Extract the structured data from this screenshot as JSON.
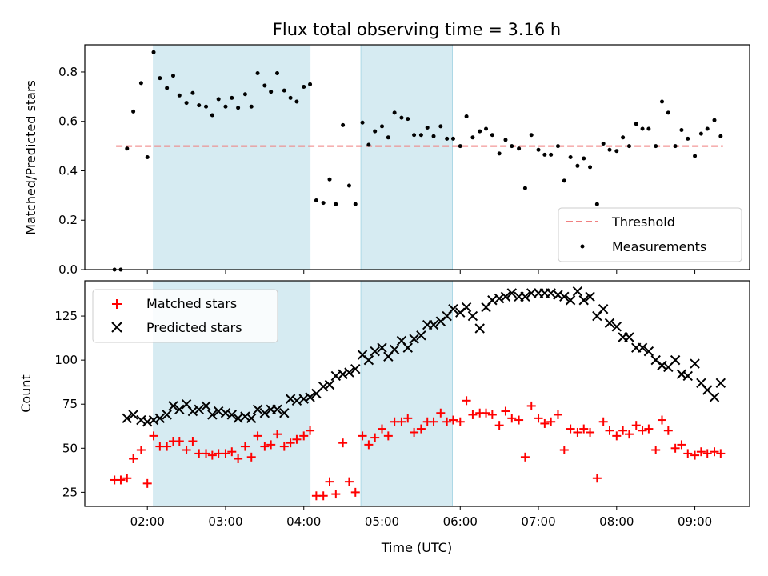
{
  "chart_data": [
    {
      "type": "scatter",
      "title": "Flux total observing time = 3.16 h",
      "xlabel": "",
      "ylabel": "Matched/Predicted stars",
      "xlim": [
        1.2,
        9.7
      ],
      "ylim": [
        0.0,
        0.91
      ],
      "yticks": [
        0.0,
        0.2,
        0.4,
        0.6,
        0.8
      ],
      "grid": false,
      "legend_position": "bottom-right",
      "shaded_regions": [
        [
          2.08,
          4.08
        ],
        [
          4.73,
          5.9
        ]
      ],
      "threshold": {
        "name": "Threshold",
        "y": 0.5,
        "x_range": [
          1.6,
          9.36
        ],
        "color": "#f08080",
        "style": "dashed"
      },
      "series": [
        {
          "name": "Measurements",
          "marker": "dot",
          "color": "#000000",
          "x": [
            1.58,
            1.66,
            1.74,
            1.82,
            1.92,
            2.0,
            2.08,
            2.16,
            2.25,
            2.33,
            2.41,
            2.5,
            2.58,
            2.66,
            2.75,
            2.83,
            2.91,
            3.0,
            3.08,
            3.16,
            3.25,
            3.33,
            3.41,
            3.5,
            3.58,
            3.66,
            3.75,
            3.83,
            3.91,
            4.0,
            4.08,
            4.16,
            4.25,
            4.33,
            4.41,
            4.5,
            4.58,
            4.66,
            4.75,
            4.83,
            4.91,
            5.0,
            5.08,
            5.16,
            5.25,
            5.33,
            5.41,
            5.5,
            5.58,
            5.66,
            5.75,
            5.83,
            5.91,
            6.0,
            6.08,
            6.16,
            6.25,
            6.33,
            6.41,
            6.5,
            6.58,
            6.66,
            6.75,
            6.83,
            6.91,
            7.0,
            7.08,
            7.16,
            7.25,
            7.33,
            7.41,
            7.5,
            7.58,
            7.66,
            7.75,
            7.83,
            7.91,
            8.0,
            8.08,
            8.16,
            8.25,
            8.33,
            8.41,
            8.5,
            8.58,
            8.66,
            8.75,
            8.83,
            8.91,
            9.0,
            9.08,
            9.16,
            9.25,
            9.33
          ],
          "y": [
            0.0,
            0.0,
            0.49,
            0.64,
            0.755,
            0.455,
            0.88,
            0.775,
            0.735,
            0.785,
            0.705,
            0.675,
            0.715,
            0.665,
            0.66,
            0.625,
            0.69,
            0.66,
            0.695,
            0.655,
            0.71,
            0.66,
            0.795,
            0.745,
            0.72,
            0.795,
            0.725,
            0.695,
            0.68,
            0.74,
            0.75,
            0.28,
            0.27,
            0.365,
            0.265,
            0.585,
            0.34,
            0.265,
            0.595,
            0.505,
            0.56,
            0.58,
            0.535,
            0.635,
            0.615,
            0.61,
            0.545,
            0.545,
            0.575,
            0.54,
            0.58,
            0.53,
            0.53,
            0.5,
            0.62,
            0.535,
            0.56,
            0.57,
            0.545,
            0.47,
            0.525,
            0.5,
            0.49,
            0.33,
            0.545,
            0.485,
            0.465,
            0.465,
            0.5,
            0.36,
            0.455,
            0.42,
            0.45,
            0.415,
            0.265,
            0.51,
            0.485,
            0.48,
            0.535,
            0.5,
            0.59,
            0.57,
            0.57,
            0.5,
            0.68,
            0.635,
            0.5,
            0.565,
            0.53,
            0.46,
            0.55,
            0.57,
            0.605,
            0.54
          ]
        }
      ]
    },
    {
      "type": "scatter",
      "title": "",
      "xlabel": "Time (UTC)",
      "ylabel": "Count",
      "xlim": [
        1.2,
        9.7
      ],
      "ylim": [
        17,
        145
      ],
      "yticks": [
        25,
        50,
        75,
        100,
        125
      ],
      "xticks": [
        2,
        3,
        4,
        5,
        6,
        7,
        8,
        9
      ],
      "xtick_labels": [
        "02:00",
        "03:00",
        "04:00",
        "05:00",
        "06:00",
        "07:00",
        "08:00",
        "09:00"
      ],
      "grid": false,
      "legend_position": "top-left",
      "shaded_regions": [
        [
          2.08,
          4.08
        ],
        [
          4.73,
          5.9
        ]
      ],
      "series": [
        {
          "name": "Matched stars",
          "marker": "plus",
          "color": "#ff0000",
          "x": [
            1.58,
            1.66,
            1.74,
            1.82,
            1.92,
            2.0,
            2.08,
            2.16,
            2.25,
            2.33,
            2.41,
            2.5,
            2.58,
            2.66,
            2.75,
            2.83,
            2.91,
            3.0,
            3.08,
            3.16,
            3.25,
            3.33,
            3.41,
            3.5,
            3.58,
            3.66,
            3.75,
            3.83,
            3.91,
            4.0,
            4.08,
            4.16,
            4.25,
            4.33,
            4.41,
            4.5,
            4.58,
            4.66,
            4.75,
            4.83,
            4.91,
            5.0,
            5.08,
            5.16,
            5.25,
            5.33,
            5.41,
            5.5,
            5.58,
            5.66,
            5.75,
            5.83,
            5.91,
            6.0,
            6.08,
            6.16,
            6.25,
            6.33,
            6.41,
            6.5,
            6.58,
            6.66,
            6.75,
            6.83,
            6.91,
            7.0,
            7.08,
            7.16,
            7.25,
            7.33,
            7.41,
            7.5,
            7.58,
            7.66,
            7.75,
            7.83,
            7.91,
            8.0,
            8.08,
            8.16,
            8.25,
            8.33,
            8.41,
            8.5,
            8.58,
            8.66,
            8.75,
            8.83,
            8.91,
            9.0,
            9.08,
            9.16,
            9.25,
            9.33
          ],
          "y": [
            32,
            32,
            33,
            44,
            49,
            30,
            57,
            51,
            51,
            54,
            54,
            49,
            54,
            47,
            47,
            46,
            47,
            47,
            48,
            44,
            51,
            45,
            57,
            51,
            52,
            58,
            51,
            53,
            55,
            57,
            60,
            23,
            23,
            31,
            24,
            53,
            31,
            25,
            57,
            52,
            56,
            61,
            57,
            65,
            65,
            67,
            59,
            61,
            65,
            65,
            70,
            65,
            66,
            65,
            77,
            69,
            70,
            70,
            69,
            63,
            71,
            67,
            66,
            45,
            74,
            67,
            64,
            65,
            69,
            49,
            61,
            59,
            61,
            59,
            33,
            65,
            60,
            57,
            60,
            58,
            63,
            60,
            61,
            49,
            66,
            60,
            50,
            52,
            47,
            46,
            48,
            47,
            48,
            47
          ]
        },
        {
          "name": "Predicted stars",
          "marker": "x",
          "color": "#000000",
          "x": [
            1.74,
            1.82,
            1.92,
            2.0,
            2.08,
            2.16,
            2.25,
            2.33,
            2.41,
            2.5,
            2.58,
            2.66,
            2.75,
            2.83,
            2.91,
            3.0,
            3.08,
            3.16,
            3.25,
            3.33,
            3.41,
            3.5,
            3.58,
            3.66,
            3.75,
            3.83,
            3.91,
            4.0,
            4.08,
            4.16,
            4.25,
            4.33,
            4.41,
            4.5,
            4.58,
            4.66,
            4.75,
            4.83,
            4.91,
            5.0,
            5.08,
            5.16,
            5.25,
            5.33,
            5.41,
            5.5,
            5.58,
            5.66,
            5.75,
            5.83,
            5.91,
            6.0,
            6.08,
            6.16,
            6.25,
            6.33,
            6.41,
            6.5,
            6.58,
            6.66,
            6.75,
            6.83,
            6.91,
            7.0,
            7.08,
            7.16,
            7.25,
            7.33,
            7.41,
            7.5,
            7.58,
            7.66,
            7.75,
            7.83,
            7.91,
            8.0,
            8.08,
            8.16,
            8.25,
            8.33,
            8.41,
            8.5,
            8.58,
            8.66,
            8.75,
            8.83,
            8.91,
            9.0,
            9.08,
            9.16,
            9.25,
            9.33
          ],
          "y": [
            67,
            69,
            66,
            65,
            66,
            67,
            69,
            74,
            72,
            75,
            71,
            72,
            74,
            69,
            71,
            70,
            69,
            67,
            68,
            67,
            72,
            70,
            72,
            72,
            70,
            78,
            77,
            78,
            79,
            81,
            85,
            86,
            91,
            92,
            93,
            95,
            103,
            100,
            105,
            107,
            102,
            106,
            111,
            107,
            112,
            114,
            120,
            120,
            122,
            125,
            129,
            127,
            130,
            125,
            118,
            130,
            134,
            135,
            136,
            138,
            136,
            136,
            138,
            138,
            138,
            138,
            137,
            136,
            134,
            139,
            134,
            136,
            125,
            129,
            121,
            119,
            113,
            113,
            107,
            107,
            105,
            100,
            97,
            96,
            100,
            92,
            91,
            98,
            87,
            83,
            79,
            87
          ]
        }
      ]
    }
  ]
}
